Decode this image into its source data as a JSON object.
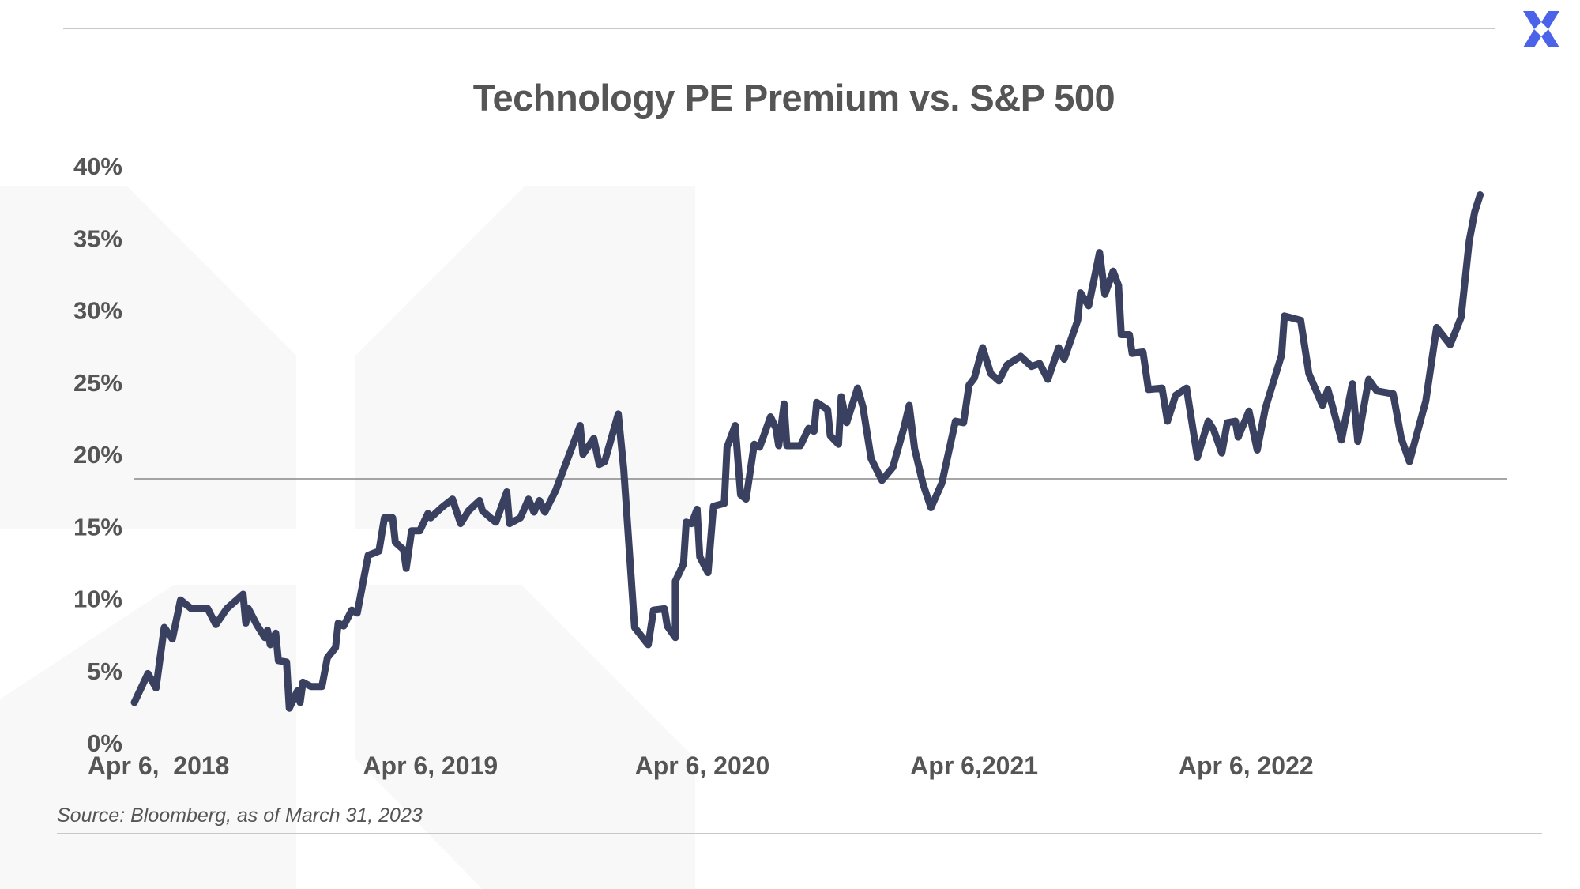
{
  "title": "Technology PE Premium vs. S&P 500",
  "source": "Source: Bloomberg, as of March 31, 2023",
  "logo_icon": "x-logo-icon",
  "colors": {
    "line": "#3a4160",
    "text": "#555555",
    "logo": "#4a63e8",
    "watermark": "#f7f7f7",
    "reference": "#888888"
  },
  "chart_data": {
    "type": "line",
    "title": "Technology PE Premium vs. S&P 500",
    "xlabel": "",
    "ylabel": "",
    "ylim": [
      0,
      40
    ],
    "yticks": [
      0,
      5,
      10,
      15,
      20,
      25,
      30,
      35,
      40
    ],
    "ytick_labels": [
      "0%",
      "5%",
      "10%",
      "15%",
      "20%",
      "25%",
      "30%",
      "35%",
      "40%"
    ],
    "xlim": [
      2018.2,
      2023.25
    ],
    "xticks": [
      {
        "x": 2018.26,
        "label": "Apr 6,  2018"
      },
      {
        "x": 2019.26,
        "label": "Apr 6, 2019"
      },
      {
        "x": 2020.26,
        "label": "Apr 6, 2020"
      },
      {
        "x": 2021.26,
        "label": "Apr 6,2021"
      },
      {
        "x": 2022.26,
        "label": "Apr 6, 2022"
      }
    ],
    "reference_line": {
      "y": 18.3
    },
    "grid": false,
    "legend": "none",
    "series": [
      {
        "values": [
          [
            2018.2,
            2.8
          ],
          [
            2018.25,
            4.8
          ],
          [
            2018.28,
            3.8
          ],
          [
            2018.31,
            8.0
          ],
          [
            2018.34,
            7.2
          ],
          [
            2018.37,
            9.9
          ],
          [
            2018.41,
            9.3
          ],
          [
            2018.47,
            9.3
          ],
          [
            2018.5,
            8.2
          ],
          [
            2018.54,
            9.3
          ],
          [
            2018.6,
            10.3
          ],
          [
            2018.61,
            8.3
          ],
          [
            2018.62,
            9.3
          ],
          [
            2018.65,
            8.2
          ],
          [
            2018.68,
            7.3
          ],
          [
            2018.69,
            7.8
          ],
          [
            2018.7,
            6.8
          ],
          [
            2018.72,
            7.6
          ],
          [
            2018.73,
            5.7
          ],
          [
            2018.76,
            5.6
          ],
          [
            2018.77,
            2.4
          ],
          [
            2018.8,
            3.6
          ],
          [
            2018.81,
            2.8
          ],
          [
            2018.82,
            4.2
          ],
          [
            2018.85,
            3.9
          ],
          [
            2018.89,
            3.9
          ],
          [
            2018.91,
            5.9
          ],
          [
            2018.94,
            6.6
          ],
          [
            2018.95,
            8.3
          ],
          [
            2018.97,
            8.1
          ],
          [
            2019.0,
            9.2
          ],
          [
            2019.02,
            9.0
          ],
          [
            2019.06,
            13.0
          ],
          [
            2019.1,
            13.3
          ],
          [
            2019.12,
            15.6
          ],
          [
            2019.15,
            15.6
          ],
          [
            2019.16,
            13.9
          ],
          [
            2019.19,
            13.4
          ],
          [
            2019.2,
            12.1
          ],
          [
            2019.22,
            14.7
          ],
          [
            2019.25,
            14.7
          ],
          [
            2019.28,
            15.9
          ],
          [
            2019.29,
            15.6
          ],
          [
            2019.33,
            16.3
          ],
          [
            2019.37,
            16.9
          ],
          [
            2019.4,
            15.2
          ],
          [
            2019.43,
            16.1
          ],
          [
            2019.47,
            16.8
          ],
          [
            2019.48,
            16.1
          ],
          [
            2019.51,
            15.6
          ],
          [
            2019.53,
            15.3
          ],
          [
            2019.57,
            17.4
          ],
          [
            2019.58,
            15.2
          ],
          [
            2019.62,
            15.6
          ],
          [
            2019.65,
            16.9
          ],
          [
            2019.67,
            16.0
          ],
          [
            2019.69,
            16.8
          ],
          [
            2019.71,
            16.0
          ],
          [
            2019.75,
            17.5
          ],
          [
            2019.79,
            19.5
          ],
          [
            2019.84,
            22.0
          ],
          [
            2019.85,
            20.0
          ],
          [
            2019.89,
            21.1
          ],
          [
            2019.91,
            19.3
          ],
          [
            2019.93,
            19.5
          ],
          [
            2019.98,
            22.8
          ],
          [
            2020.0,
            19.0
          ],
          [
            2020.04,
            8.0
          ],
          [
            2020.09,
            6.8
          ],
          [
            2020.11,
            9.2
          ],
          [
            2020.15,
            9.3
          ],
          [
            2020.16,
            8.1
          ],
          [
            2020.19,
            7.3
          ],
          [
            2020.19,
            11.2
          ],
          [
            2020.22,
            12.4
          ],
          [
            2020.23,
            15.3
          ],
          [
            2020.25,
            15.2
          ],
          [
            2020.27,
            16.2
          ],
          [
            2020.28,
            12.9
          ],
          [
            2020.31,
            11.8
          ],
          [
            2020.33,
            16.4
          ],
          [
            2020.37,
            16.6
          ],
          [
            2020.38,
            20.5
          ],
          [
            2020.41,
            22.0
          ],
          [
            2020.43,
            17.2
          ],
          [
            2020.45,
            16.9
          ],
          [
            2020.48,
            20.7
          ],
          [
            2020.5,
            20.5
          ],
          [
            2020.54,
            22.6
          ],
          [
            2020.56,
            21.8
          ],
          [
            2020.57,
            20.6
          ],
          [
            2020.59,
            23.5
          ],
          [
            2020.6,
            20.6
          ],
          [
            2020.65,
            20.6
          ],
          [
            2020.68,
            21.8
          ],
          [
            2020.7,
            21.6
          ],
          [
            2020.71,
            23.6
          ],
          [
            2020.75,
            23.1
          ],
          [
            2020.76,
            21.3
          ],
          [
            2020.79,
            20.7
          ],
          [
            2020.8,
            24.0
          ],
          [
            2020.82,
            22.2
          ],
          [
            2020.86,
            24.6
          ],
          [
            2020.88,
            23.3
          ],
          [
            2020.91,
            19.7
          ],
          [
            2020.95,
            18.2
          ],
          [
            2020.99,
            19.1
          ],
          [
            2021.03,
            21.8
          ],
          [
            2021.05,
            23.4
          ],
          [
            2021.07,
            20.4
          ],
          [
            2021.1,
            18.0
          ],
          [
            2021.13,
            16.3
          ],
          [
            2021.17,
            18.0
          ],
          [
            2021.22,
            22.3
          ],
          [
            2021.25,
            22.2
          ],
          [
            2021.27,
            24.8
          ],
          [
            2021.29,
            25.3
          ],
          [
            2021.32,
            27.4
          ],
          [
            2021.35,
            25.6
          ],
          [
            2021.38,
            25.1
          ],
          [
            2021.41,
            26.2
          ],
          [
            2021.46,
            26.8
          ],
          [
            2021.5,
            26.1
          ],
          [
            2021.53,
            26.3
          ],
          [
            2021.56,
            25.2
          ],
          [
            2021.6,
            27.4
          ],
          [
            2021.62,
            26.6
          ],
          [
            2021.67,
            29.3
          ],
          [
            2021.68,
            31.2
          ],
          [
            2021.71,
            30.3
          ],
          [
            2021.75,
            34.0
          ],
          [
            2021.77,
            31.1
          ],
          [
            2021.8,
            32.7
          ],
          [
            2021.82,
            31.7
          ],
          [
            2021.83,
            28.3
          ],
          [
            2021.86,
            28.3
          ],
          [
            2021.87,
            27.0
          ],
          [
            2021.91,
            27.1
          ],
          [
            2021.93,
            24.5
          ],
          [
            2021.98,
            24.6
          ],
          [
            2022.0,
            22.3
          ],
          [
            2022.03,
            24.1
          ],
          [
            2022.07,
            24.6
          ],
          [
            2022.11,
            19.8
          ],
          [
            2022.15,
            22.3
          ],
          [
            2022.17,
            21.7
          ],
          [
            2022.2,
            20.1
          ],
          [
            2022.22,
            22.2
          ],
          [
            2022.25,
            22.3
          ],
          [
            2022.26,
            21.2
          ],
          [
            2022.3,
            23.0
          ],
          [
            2022.33,
            20.3
          ],
          [
            2022.36,
            23.2
          ],
          [
            2022.42,
            26.9
          ],
          [
            2022.43,
            29.6
          ],
          [
            2022.49,
            29.3
          ],
          [
            2022.52,
            25.6
          ],
          [
            2022.57,
            23.4
          ],
          [
            2022.59,
            24.5
          ],
          [
            2022.64,
            21.0
          ],
          [
            2022.68,
            24.9
          ],
          [
            2022.7,
            20.9
          ],
          [
            2022.74,
            25.2
          ],
          [
            2022.77,
            24.4
          ],
          [
            2022.83,
            24.2
          ],
          [
            2022.86,
            21.1
          ],
          [
            2022.89,
            19.5
          ],
          [
            2022.95,
            23.7
          ],
          [
            2022.99,
            28.8
          ],
          [
            2023.04,
            27.6
          ],
          [
            2023.08,
            29.5
          ],
          [
            2023.11,
            34.8
          ],
          [
            2023.13,
            36.8
          ],
          [
            2023.15,
            38.0
          ]
        ]
      }
    ]
  }
}
